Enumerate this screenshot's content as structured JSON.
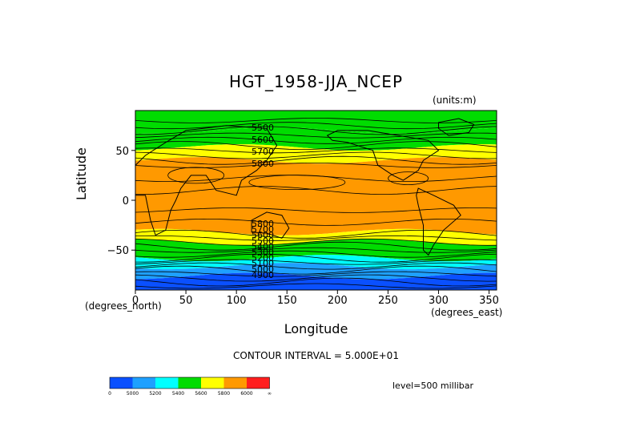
{
  "title": "HGT_1958-JJA_NCEP",
  "units": "(units:m)",
  "xlabel": "Longitude",
  "ylabel": "Latitude",
  "x_units": "(degrees_east)",
  "y_units": "(degrees_north)",
  "contour_interval": "CONTOUR INTERVAL = 5.000E+01",
  "level": "level=500 millibar",
  "x_ticks": [
    "0",
    "50",
    "100",
    "150",
    "200",
    "250",
    "300",
    "350"
  ],
  "y_ticks": [
    "50",
    "0",
    "−50"
  ],
  "colorbar": {
    "colors": [
      "#0a50ff",
      "#1ea0ff",
      "#00ffff",
      "#00dc00",
      "#ffff00",
      "#ff9900",
      "#ff1e1e"
    ],
    "labels": [
      "0",
      "5000",
      "5200",
      "5400",
      "5600",
      "5800",
      "6000",
      "∞"
    ]
  },
  "chart_data": {
    "type": "heatmap",
    "variable": "HGT",
    "x_range": [
      0,
      357.5
    ],
    "y_range": [
      -90,
      90
    ],
    "contour_labels_north": [
      "5500",
      "5600",
      "5700",
      "5800"
    ],
    "contour_labels_south": [
      "5800",
      "5700",
      "5600",
      "5500",
      "5400",
      "5300",
      "5200",
      "5100",
      "5000",
      "4900"
    ],
    "fill_bands": [
      {
        "lat_from": 70,
        "lat_to": 90,
        "color": "#00dc00"
      },
      {
        "lat_from": 53,
        "lat_to": 70,
        "color": "#00dc00"
      },
      {
        "lat_from": 40,
        "lat_to": 53,
        "color": "#ffff00"
      },
      {
        "lat_from": -32,
        "lat_to": 40,
        "color": "#ff9900"
      },
      {
        "lat_from": -42,
        "lat_to": -32,
        "color": "#ffff00"
      },
      {
        "lat_from": -58,
        "lat_to": -42,
        "color": "#00dc00"
      },
      {
        "lat_from": -66,
        "lat_to": -58,
        "color": "#00ffff"
      },
      {
        "lat_from": -76,
        "lat_to": -66,
        "color": "#1ea0ff"
      },
      {
        "lat_from": -90,
        "lat_to": -76,
        "color": "#0a50ff"
      }
    ]
  }
}
